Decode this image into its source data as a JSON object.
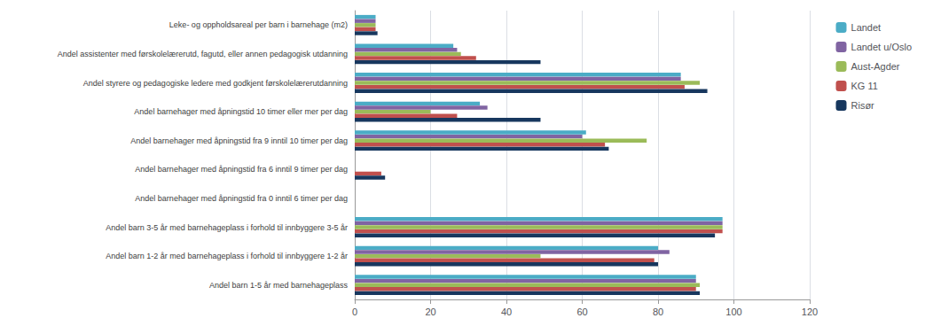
{
  "chart_data": {
    "type": "bar",
    "orientation": "horizontal",
    "categories": [
      "Andel barn 1-5 år med barnehageplass",
      "Andel barn 1-2 år med barnehageplass i forhold til innbyggere 1-2 år",
      "Andel barn 3-5 år med barnehageplass i forhold til innbyggere 3-5 år",
      "Andel barnehager med åpningstid fra 0 inntil 6 timer per dag",
      "Andel barnehager med åpningstid fra 6 inntil 9 timer per dag",
      "Andel barnehager med åpningstid fra 9 inntil 10 timer per dag",
      "Andel barnehager med åpningstid 10 timer eller mer per dag",
      "Andel styrere og pedagogiske ledere med godkjent førskolelærerutdanning",
      "Andel assistenter med førskolelærerutd, fagutd, eller annen pedagogisk utdanning",
      "Leke- og oppholdsareal per barn i barnehage (m2)"
    ],
    "series": [
      {
        "name": "Landet",
        "color": "#4bacc6",
        "values": [
          90,
          80,
          97,
          0,
          0,
          61,
          33,
          86,
          26,
          5.5
        ]
      },
      {
        "name": "Landet u/Oslo",
        "color": "#8064a2",
        "values": [
          90,
          83,
          97,
          0,
          0,
          60,
          35,
          86,
          27,
          5.5
        ]
      },
      {
        "name": "Aust-Agder",
        "color": "#9bbb59",
        "values": [
          91,
          49,
          97,
          0,
          0,
          77,
          20,
          91,
          28,
          5.5
        ]
      },
      {
        "name": "KG 11",
        "color": "#c0504d",
        "values": [
          90,
          79,
          97,
          0,
          7,
          66,
          27,
          87,
          32,
          5.5
        ]
      },
      {
        "name": "Risør",
        "color": "#17375e",
        "values": [
          91,
          80,
          95,
          0,
          8,
          67,
          49,
          93,
          49,
          6
        ]
      }
    ],
    "xlim": [
      0,
      120
    ],
    "xticks": [
      0,
      20,
      40,
      60,
      80,
      100,
      120
    ],
    "grid": true,
    "legend": "right"
  }
}
